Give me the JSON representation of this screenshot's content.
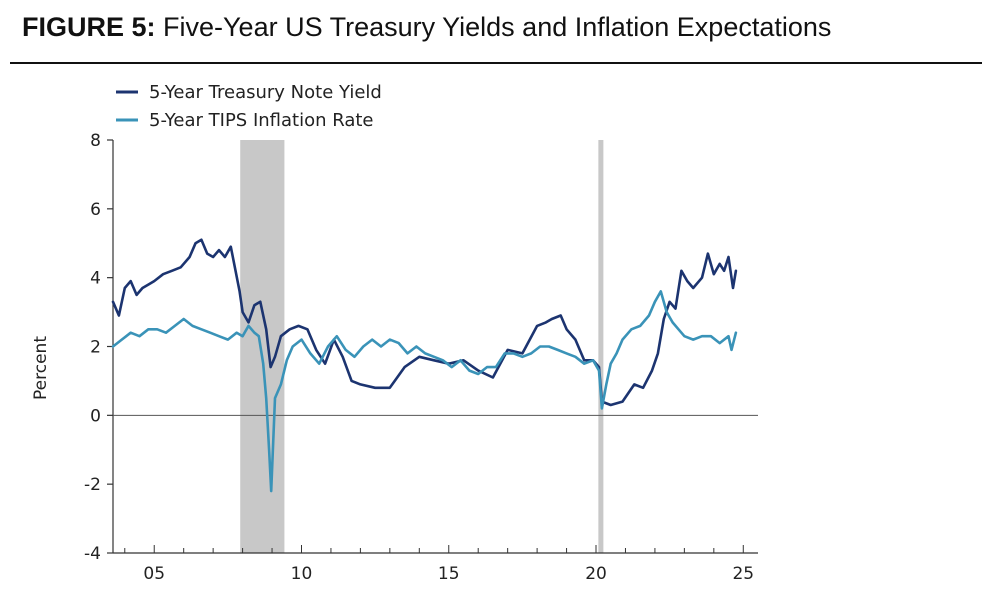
{
  "figure": {
    "label": "FIGURE 5:",
    "title": "Five-Year US Treasury Yields and Inflation Expectations"
  },
  "chart_data": {
    "type": "line",
    "ylabel": "Percent",
    "xlabel": "",
    "xlim": [
      2003.6,
      2025.5
    ],
    "ylim": [
      -4,
      8
    ],
    "y_ticks": [
      8,
      6,
      4,
      2,
      0,
      -2,
      -4
    ],
    "x_ticks": [
      {
        "year": 2005,
        "label": "05"
      },
      {
        "year": 2010,
        "label": "10"
      },
      {
        "year": 2015,
        "label": "15"
      },
      {
        "year": 2020,
        "label": "20"
      },
      {
        "year": 2025,
        "label": "25"
      }
    ],
    "zero_line": true,
    "grid": false,
    "legend_position": "top-left",
    "recessions": [
      {
        "start": 2007.92,
        "end": 2009.42
      },
      {
        "start": 2020.08,
        "end": 2020.25
      }
    ],
    "colors": {
      "treasury": "#1c3470",
      "tips": "#3a93b8",
      "recession": "#c8c8c8",
      "axis": "#333333"
    },
    "series": [
      {
        "name": "5-Year Treasury Note Yield",
        "color": "#1c3470",
        "x": [
          2003.6,
          2003.8,
          2004.0,
          2004.2,
          2004.4,
          2004.6,
          2004.8,
          2005.0,
          2005.3,
          2005.6,
          2005.9,
          2006.2,
          2006.4,
          2006.6,
          2006.8,
          2007.0,
          2007.2,
          2007.4,
          2007.6,
          2007.9,
          2008.0,
          2008.2,
          2008.4,
          2008.6,
          2008.8,
          2008.95,
          2009.1,
          2009.3,
          2009.6,
          2009.9,
          2010.2,
          2010.5,
          2010.8,
          2011.1,
          2011.4,
          2011.7,
          2012.0,
          2012.5,
          2013.0,
          2013.5,
          2014.0,
          2014.5,
          2015.0,
          2015.5,
          2016.0,
          2016.5,
          2017.0,
          2017.5,
          2018.0,
          2018.3,
          2018.5,
          2018.8,
          2019.0,
          2019.3,
          2019.6,
          2019.9,
          2020.1,
          2020.2,
          2020.5,
          2020.9,
          2021.3,
          2021.6,
          2021.9,
          2022.1,
          2022.3,
          2022.5,
          2022.7,
          2022.9,
          2023.1,
          2023.3,
          2023.6,
          2023.8,
          2024.0,
          2024.2,
          2024.35,
          2024.5,
          2024.65,
          2024.75
        ],
        "values": [
          3.3,
          2.9,
          3.7,
          3.9,
          3.5,
          3.7,
          3.8,
          3.9,
          4.1,
          4.2,
          4.3,
          4.6,
          5.0,
          5.1,
          4.7,
          4.6,
          4.8,
          4.6,
          4.9,
          3.6,
          3.0,
          2.7,
          3.2,
          3.3,
          2.5,
          1.4,
          1.7,
          2.3,
          2.5,
          2.6,
          2.5,
          1.9,
          1.5,
          2.2,
          1.7,
          1.0,
          0.9,
          0.8,
          0.8,
          1.4,
          1.7,
          1.6,
          1.5,
          1.6,
          1.3,
          1.1,
          1.9,
          1.8,
          2.6,
          2.7,
          2.8,
          2.9,
          2.5,
          2.2,
          1.6,
          1.6,
          1.4,
          0.4,
          0.3,
          0.4,
          0.9,
          0.8,
          1.3,
          1.8,
          2.8,
          3.3,
          3.1,
          4.2,
          3.9,
          3.7,
          4.0,
          4.7,
          4.1,
          4.4,
          4.2,
          4.6,
          3.7,
          4.2
        ]
      },
      {
        "name": "5-Year TIPS Inflation Rate",
        "color": "#3a93b8",
        "x": [
          2003.6,
          2003.9,
          2004.2,
          2004.5,
          2004.8,
          2005.1,
          2005.4,
          2005.7,
          2006.0,
          2006.3,
          2006.6,
          2006.9,
          2007.2,
          2007.5,
          2007.8,
          2008.0,
          2008.2,
          2008.4,
          2008.55,
          2008.7,
          2008.8,
          2008.9,
          2008.97,
          2009.1,
          2009.3,
          2009.5,
          2009.7,
          2010.0,
          2010.3,
          2010.6,
          2010.9,
          2011.2,
          2011.5,
          2011.8,
          2012.1,
          2012.4,
          2012.7,
          2013.0,
          2013.3,
          2013.6,
          2013.9,
          2014.2,
          2014.5,
          2014.8,
          2015.1,
          2015.4,
          2015.7,
          2016.0,
          2016.3,
          2016.6,
          2016.9,
          2017.2,
          2017.5,
          2017.8,
          2018.1,
          2018.4,
          2018.7,
          2019.0,
          2019.3,
          2019.6,
          2019.9,
          2020.1,
          2020.2,
          2020.35,
          2020.5,
          2020.7,
          2020.9,
          2021.2,
          2021.5,
          2021.8,
          2022.0,
          2022.2,
          2022.4,
          2022.6,
          2022.8,
          2023.0,
          2023.3,
          2023.6,
          2023.9,
          2024.2,
          2024.5,
          2024.6,
          2024.75
        ],
        "values": [
          2.0,
          2.2,
          2.4,
          2.3,
          2.5,
          2.5,
          2.4,
          2.6,
          2.8,
          2.6,
          2.5,
          2.4,
          2.3,
          2.2,
          2.4,
          2.3,
          2.6,
          2.4,
          2.3,
          1.5,
          0.5,
          -1.0,
          -2.2,
          0.5,
          0.9,
          1.6,
          2.0,
          2.2,
          1.8,
          1.5,
          2.0,
          2.3,
          1.9,
          1.7,
          2.0,
          2.2,
          2.0,
          2.2,
          2.1,
          1.8,
          2.0,
          1.8,
          1.7,
          1.6,
          1.4,
          1.6,
          1.3,
          1.2,
          1.4,
          1.4,
          1.8,
          1.8,
          1.7,
          1.8,
          2.0,
          2.0,
          1.9,
          1.8,
          1.7,
          1.5,
          1.6,
          1.3,
          0.2,
          0.9,
          1.5,
          1.8,
          2.2,
          2.5,
          2.6,
          2.9,
          3.3,
          3.6,
          3.0,
          2.7,
          2.5,
          2.3,
          2.2,
          2.3,
          2.3,
          2.1,
          2.3,
          1.9,
          2.4
        ]
      }
    ]
  }
}
